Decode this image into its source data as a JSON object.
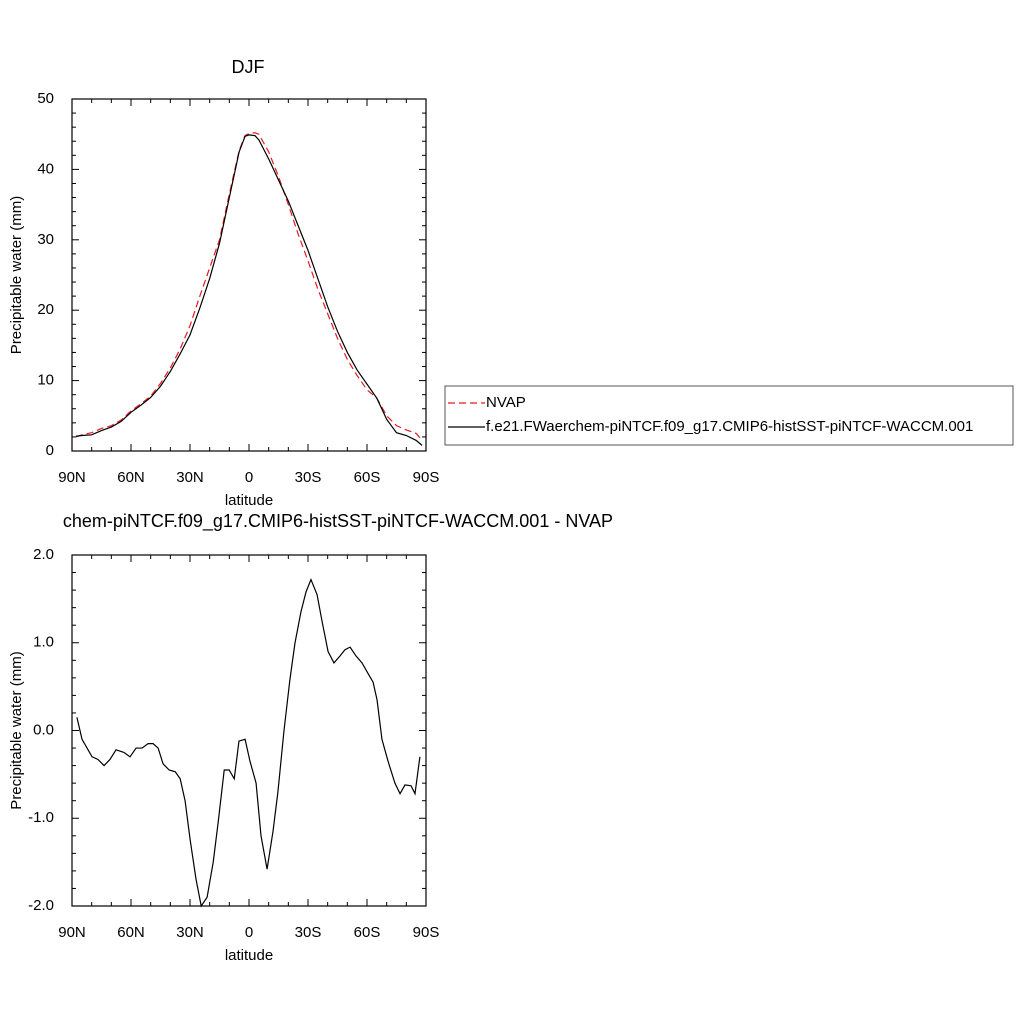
{
  "chart_data": [
    {
      "type": "line",
      "title": "DJF",
      "xlabel": "latitude",
      "ylabel": "Precipitable water (mm)",
      "xlim": [
        90,
        -90
      ],
      "ylim": [
        0,
        50
      ],
      "xticks": [
        {
          "value": 90,
          "label": "90N"
        },
        {
          "value": 60,
          "label": "60N"
        },
        {
          "value": 30,
          "label": "30N"
        },
        0,
        {
          "value": -30,
          "label": "30S"
        },
        {
          "value": -60,
          "label": "60S"
        },
        {
          "value": -90,
          "label": "90S"
        }
      ],
      "yticks": [
        0,
        10,
        20,
        30,
        40,
        50
      ],
      "legend": "right",
      "x": [
        88,
        85,
        80,
        75,
        70,
        65,
        60,
        55,
        50,
        45,
        40,
        35,
        30,
        25,
        20,
        15,
        10,
        5,
        2,
        0,
        -3,
        -5,
        -10,
        -15,
        -20,
        -25,
        -30,
        -35,
        -40,
        -45,
        -50,
        -55,
        -60,
        -65,
        -70,
        -75,
        -80,
        -85,
        -88
      ],
      "series": [
        {
          "name": "NVAP",
          "color": "#e8191f",
          "style": "dashed",
          "values": [
            2.0,
            2.3,
            2.6,
            3.2,
            3.6,
            4.4,
            5.7,
            6.7,
            7.8,
            9.6,
            11.8,
            14.5,
            17.8,
            22.0,
            26.0,
            30.0,
            36.5,
            42.7,
            44.8,
            45.1,
            45.2,
            45.0,
            42.5,
            39.0,
            35.0,
            30.8,
            27.0,
            23.0,
            19.5,
            16.0,
            13.0,
            10.7,
            8.7,
            7.5,
            5.0,
            3.6,
            3.0,
            2.5,
            1.5
          ]
        },
        {
          "name": "f.e21.FWaerchem-piNTCF.f09_g17.CMIP6-histSST-piNTCF-WACCM.001",
          "color": "#000000",
          "style": "solid",
          "values": [
            2.1,
            2.2,
            2.3,
            2.9,
            3.4,
            4.2,
            5.5,
            6.5,
            7.6,
            9.2,
            11.3,
            13.8,
            16.5,
            20.3,
            24.5,
            29.5,
            36.0,
            42.5,
            44.7,
            44.9,
            44.8,
            44.2,
            41.5,
            38.5,
            35.5,
            32.0,
            28.5,
            24.5,
            20.5,
            17.0,
            14.0,
            11.5,
            9.5,
            7.5,
            4.5,
            2.6,
            2.2,
            1.5,
            0.8
          ]
        }
      ]
    },
    {
      "type": "line",
      "title": "chem-piNTCF.f09_g17.CMIP6-histSST-piNTCF-WACCM.001 - NVAP",
      "xlabel": "latitude",
      "ylabel": "Precipitable water (mm)",
      "xlim": [
        90,
        -90
      ],
      "ylim": [
        -2.0,
        2.0
      ],
      "xticks": [
        {
          "value": 90,
          "label": "90N"
        },
        {
          "value": 60,
          "label": "60N"
        },
        {
          "value": 30,
          "label": "30N"
        },
        0,
        {
          "value": -30,
          "label": "30S"
        },
        {
          "value": -60,
          "label": "60S"
        },
        {
          "value": -90,
          "label": "90S"
        }
      ],
      "yticks": [
        {
          "value": -2.0,
          "label": "-2.0"
        },
        {
          "value": -1.0,
          "label": "-1.0"
        },
        {
          "value": 0.0,
          "label": "0.0"
        },
        {
          "value": 1.0,
          "label": "1.0"
        },
        {
          "value": 2.0,
          "label": "2.0"
        }
      ],
      "color": "#000000",
      "x": [
        87.5,
        84.9,
        79.8,
        76.8,
        73.7,
        70.7,
        67.6,
        63.6,
        60.5,
        57.4,
        54.4,
        51.3,
        48.8,
        46.2,
        43.7,
        40.6,
        37.5,
        35.0,
        32.5,
        29.9,
        26.9,
        24.3,
        21.3,
        18.2,
        15.7,
        12.6,
        10.1,
        7.5,
        5.1,
        2.0,
        -0.5,
        -3.6,
        -6.1,
        -9.2,
        -12.2,
        -14.7,
        -17.8,
        -20.8,
        -23.4,
        -26.4,
        -29.0,
        -31.5,
        -34.6,
        -37.1,
        -40.2,
        -43.2,
        -46.3,
        -48.8,
        -51.4,
        -54.4,
        -57.5,
        -60.0,
        -63.1,
        -65.1,
        -67.6,
        -70.7,
        -74.2,
        -76.8,
        -79.3,
        -82.4,
        -84.4,
        -86.9
      ],
      "values": [
        0.15,
        -0.1,
        -0.3,
        -0.33,
        -0.4,
        -0.33,
        -0.22,
        -0.25,
        -0.3,
        -0.2,
        -0.2,
        -0.15,
        -0.15,
        -0.2,
        -0.38,
        -0.45,
        -0.47,
        -0.55,
        -0.8,
        -1.25,
        -1.7,
        -2.0,
        -1.9,
        -1.5,
        -1.05,
        -0.45,
        -0.45,
        -0.55,
        -0.12,
        -0.1,
        -0.35,
        -0.6,
        -1.2,
        -1.58,
        -1.15,
        -0.7,
        0.0,
        0.58,
        1.0,
        1.35,
        1.58,
        1.72,
        1.55,
        1.25,
        0.9,
        0.77,
        0.85,
        0.92,
        0.95,
        0.85,
        0.77,
        0.67,
        0.55,
        0.35,
        -0.1,
        -0.35,
        -0.6,
        -0.72,
        -0.62,
        -0.63,
        -0.72,
        -0.3
      ]
    }
  ]
}
